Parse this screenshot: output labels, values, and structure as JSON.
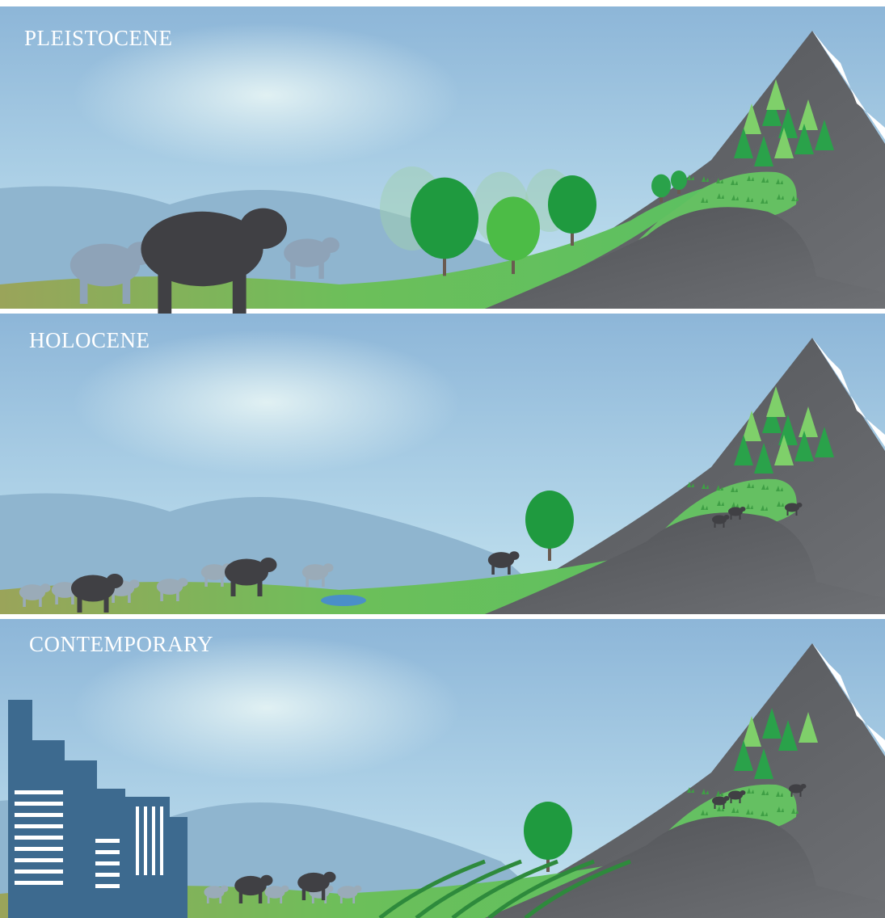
{
  "panels": [
    {
      "title": "PLEISTOCENE"
    },
    {
      "title": "HOLOCENE"
    },
    {
      "title": "CONTEMPORARY"
    }
  ]
}
